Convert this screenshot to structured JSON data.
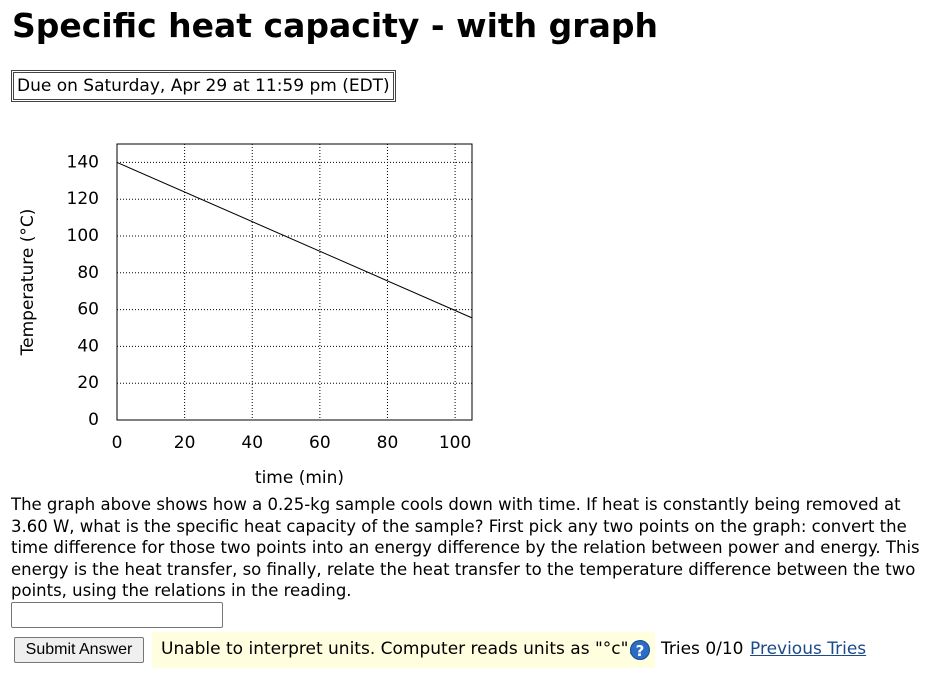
{
  "header": {
    "title": "Specific heat capacity - with graph",
    "due": "Due on Saturday, Apr 29 at 11:59 pm (EDT)"
  },
  "chart_data": {
    "type": "line",
    "xlabel": "time (min)",
    "ylabel": "Temperature (°C)",
    "x": [
      0,
      105
    ],
    "series": [
      {
        "color": "#000000",
        "values": [
          140,
          55.5
        ]
      }
    ],
    "xlim": [
      0,
      105
    ],
    "ylim": [
      0,
      150
    ],
    "xticks": [
      0,
      20,
      40,
      60,
      80,
      100
    ],
    "yticks": [
      0,
      20,
      40,
      60,
      80,
      100,
      120,
      140
    ],
    "grid": true
  },
  "question": {
    "text": "The graph above shows how a 0.25-kg sample cools down with time. If heat is constantly being removed at 3.60 W, what is the specific heat capacity of the sample? First pick any two points on the graph: convert the time difference for those two points into an energy difference by the relation between power and energy. This energy is the heat transfer, so finally, relate the heat transfer to the temperature difference between the two points, using the relations in the reading."
  },
  "answer": {
    "submit": "Submit Answer",
    "message": "Unable to interpret units. Computer reads units as \"°c\".",
    "help_icon": "?",
    "tries": "Tries 0/10",
    "previous_tries": "Previous Tries"
  }
}
